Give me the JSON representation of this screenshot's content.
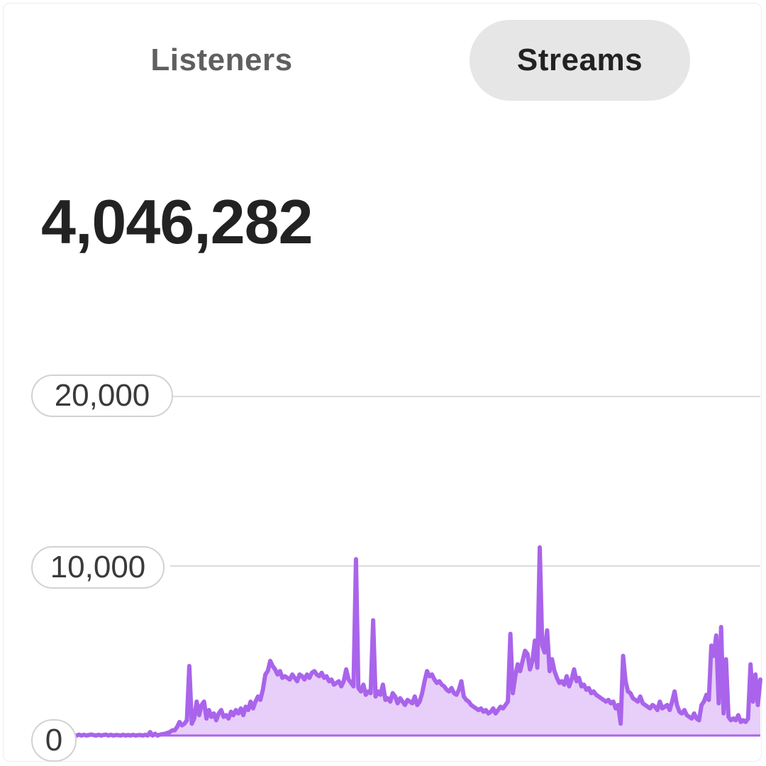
{
  "tabs": [
    {
      "label": "Listeners",
      "active": false
    },
    {
      "label": "Streams",
      "active": true
    }
  ],
  "total_value": "4,046,282",
  "colors": {
    "line": "#a964eb",
    "fill": "#e7cff9",
    "grid": "#dcdcdc",
    "active_tab_bg": "#e6e6e6"
  },
  "chart_data": {
    "type": "area",
    "title": "",
    "xlabel": "",
    "ylabel": "",
    "ylim": [
      0,
      22000
    ],
    "grid": true,
    "y_ticks": [
      {
        "value": 20000,
        "label": "20,000"
      },
      {
        "value": 10000,
        "label": "10,000"
      },
      {
        "value": 0,
        "label": "0"
      }
    ],
    "series": [
      {
        "values": [
          0,
          50,
          0,
          40,
          0,
          30,
          60,
          20,
          0,
          40,
          0,
          30,
          50,
          0,
          40,
          0,
          30,
          20,
          0,
          40,
          0,
          30,
          0,
          40,
          0,
          20,
          30,
          0,
          40,
          0,
          200,
          0,
          100,
          0,
          50,
          80,
          100,
          150,
          200,
          300,
          300,
          500,
          800,
          600,
          700,
          900,
          4100,
          700,
          1000,
          2000,
          1200,
          1800,
          2000,
          1000,
          1500,
          1100,
          1300,
          900,
          1300,
          1500,
          1100,
          1200,
          1000,
          1400,
          1200,
          1500,
          1300,
          1600,
          1200,
          1700,
          1500,
          2000,
          1600,
          2000,
          2300,
          2100,
          2700,
          3600,
          3800,
          4400,
          4100,
          3900,
          3600,
          3800,
          3400,
          3500,
          3400,
          3300,
          3600,
          3400,
          3200,
          3600,
          3500,
          3300,
          3600,
          3400,
          3700,
          3800,
          3600,
          3500,
          3700,
          3400,
          3500,
          3200,
          3300,
          3000,
          3100,
          3200,
          2900,
          3200,
          3900,
          3300,
          3100,
          2900,
          10400,
          2800,
          2600,
          3000,
          2400,
          2600,
          2500,
          6800,
          2300,
          2600,
          2400,
          3000,
          2100,
          2200,
          2000,
          2500,
          2300,
          1900,
          2200,
          2000,
          1800,
          2100,
          2000,
          1900,
          2300,
          1800,
          2000,
          2500,
          3200,
          3800,
          3500,
          3600,
          3300,
          3100,
          3200,
          3000,
          2900,
          2700,
          2600,
          2800,
          2500,
          2400,
          2700,
          3200,
          2300,
          2100,
          2000,
          1800,
          1700,
          1600,
          1500,
          1600,
          1400,
          1500,
          1300,
          1400,
          1600,
          1300,
          1500,
          1700,
          1600,
          1800,
          2000,
          6000,
          2500,
          3500,
          4200,
          3800,
          4400,
          5000,
          4800,
          3900,
          4400,
          5600,
          4000,
          11100,
          5300,
          4900,
          6200,
          3800,
          4500,
          3800,
          3400,
          3100,
          3200,
          3000,
          3500,
          2900,
          3300,
          3900,
          3200,
          3400,
          2900,
          3000,
          2700,
          2800,
          2500,
          2600,
          2400,
          2300,
          2200,
          2100,
          2000,
          2100,
          1900,
          2000,
          1600,
          1800,
          700,
          4700,
          3200,
          2600,
          2500,
          2200,
          2100,
          2000,
          2300,
          1900,
          1800,
          1700,
          1600,
          1800,
          1700,
          1500,
          2000,
          1600,
          1700,
          1800,
          1500,
          2000,
          2600,
          1800,
          1400,
          1300,
          1500,
          1200,
          1100,
          1000,
          1300,
          1000,
          900,
          1800,
          2000,
          2400,
          2100,
          5300,
          4700,
          5900,
          1900,
          6400,
          1300,
          4500,
          1100,
          900,
          1000,
          900,
          1200,
          800,
          900,
          800,
          1000,
          4200,
          2000,
          3600,
          1800,
          3300
        ]
      }
    ]
  }
}
